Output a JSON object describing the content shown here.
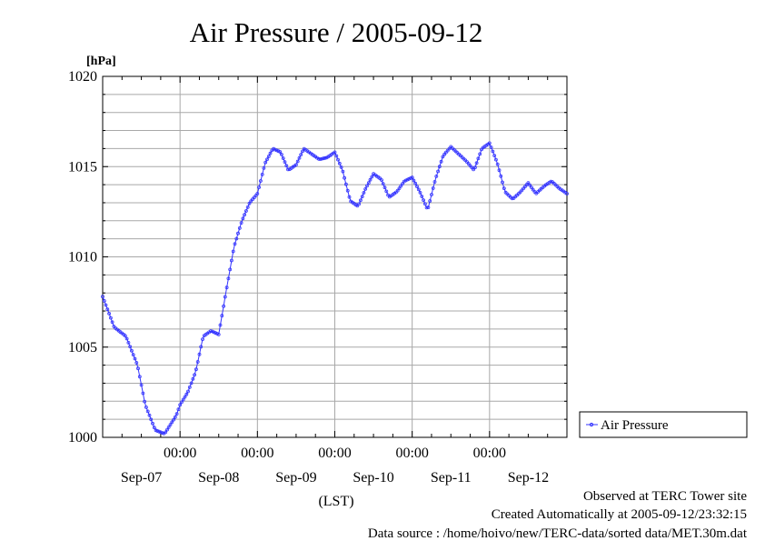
{
  "colors": {
    "series": "#3333ff",
    "grid": "#a8a8a8",
    "axis": "#000000"
  },
  "chart_data": {
    "type": "line",
    "title": "Air Pressure / 2005-09-12",
    "ylabel": "[hPa]",
    "xlabel": "(LST)",
    "ylim": [
      1000,
      1020
    ],
    "y_ticks": [
      "1000",
      "1005",
      "1010",
      "1015",
      "1020"
    ],
    "x_range_days": [
      0,
      6
    ],
    "x_major_labels": [
      "00:00",
      "00:00",
      "00:00",
      "00:00",
      "00:00"
    ],
    "x_day_labels": [
      "Sep-07",
      "Sep-08",
      "Sep-09",
      "Sep-10",
      "Sep-11",
      "Sep-12"
    ],
    "grid": true,
    "legend_position": "right",
    "series": [
      {
        "name": "Air Pressure",
        "x": [
          0.0,
          0.15,
          0.3,
          0.45,
          0.55,
          0.68,
          0.8,
          0.95,
          1.0,
          1.1,
          1.2,
          1.3,
          1.4,
          1.5,
          1.6,
          1.7,
          1.8,
          1.9,
          2.0,
          2.1,
          2.2,
          2.3,
          2.4,
          2.5,
          2.6,
          2.7,
          2.8,
          2.9,
          3.0,
          3.1,
          3.2,
          3.3,
          3.4,
          3.5,
          3.6,
          3.7,
          3.8,
          3.9,
          4.0,
          4.1,
          4.2,
          4.3,
          4.4,
          4.5,
          4.6,
          4.7,
          4.8,
          4.9,
          5.0,
          5.1,
          5.2,
          5.3,
          5.4,
          5.5,
          5.6,
          5.7,
          5.8,
          5.9,
          6.0
        ],
        "y": [
          1007.8,
          1006.1,
          1005.6,
          1004.0,
          1001.8,
          1000.4,
          1000.2,
          1001.2,
          1001.8,
          1002.5,
          1003.6,
          1005.6,
          1005.9,
          1005.7,
          1008.2,
          1010.6,
          1012.0,
          1013.0,
          1013.5,
          1015.2,
          1016.0,
          1015.8,
          1014.8,
          1015.1,
          1016.0,
          1015.7,
          1015.4,
          1015.5,
          1015.8,
          1014.8,
          1013.1,
          1012.8,
          1013.8,
          1014.6,
          1014.3,
          1013.3,
          1013.6,
          1014.2,
          1014.4,
          1013.6,
          1012.6,
          1014.3,
          1015.6,
          1016.1,
          1015.7,
          1015.3,
          1014.8,
          1016.0,
          1016.3,
          1015.2,
          1013.6,
          1013.2,
          1013.6,
          1014.1,
          1013.5,
          1013.9,
          1014.2,
          1013.8,
          1013.5
        ]
      }
    ]
  },
  "footer": {
    "line1": "Observed at TERC Tower site",
    "line2": "Created Automatically at 2005-09-12/23:32:15",
    "line3": "Data source : /home/hoivo/new/TERC-data/sorted  data/MET.30m.dat"
  }
}
